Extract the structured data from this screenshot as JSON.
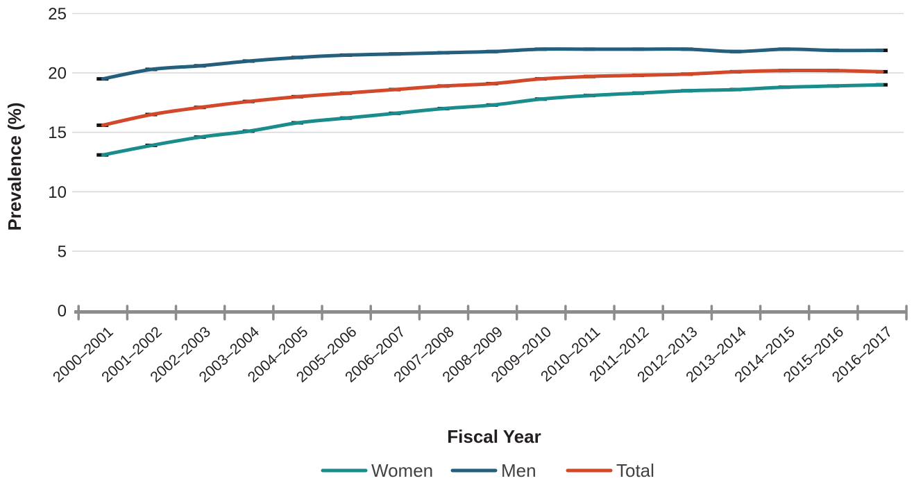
{
  "chart_data": {
    "type": "line",
    "title": "",
    "xlabel": "Fiscal Year",
    "ylabel": "Prevalence (%)",
    "x_categories": [
      "2000–2001",
      "2001–2002",
      "2002–2003",
      "2003–2004",
      "2004–2005",
      "2005–2006",
      "2006–2007",
      "2007–2008",
      "2008–2009",
      "2009–2010",
      "2010–2011",
      "2011–2012",
      "2012–2013",
      "2013–2014",
      "2014–2015",
      "2015–2016",
      "2016–2017"
    ],
    "y_ticks": [
      0,
      5,
      10,
      15,
      20,
      25
    ],
    "ylim": [
      0,
      25
    ],
    "grid": "horizontal-only",
    "legend_position": "bottom-center",
    "point_marker": "small black dash at each data point",
    "series": [
      {
        "name": "Women",
        "color": "#1a8c8c",
        "values": [
          13.1,
          13.9,
          14.6,
          15.1,
          15.8,
          16.2,
          16.6,
          17.0,
          17.3,
          17.8,
          18.1,
          18.3,
          18.5,
          18.6,
          18.8,
          18.9,
          19.0
        ]
      },
      {
        "name": "Men",
        "color": "#255f7e",
        "values": [
          19.5,
          20.3,
          20.6,
          21.0,
          21.3,
          21.5,
          21.6,
          21.7,
          21.8,
          22.0,
          22.0,
          22.0,
          22.0,
          21.8,
          22.0,
          21.9,
          21.9
        ]
      },
      {
        "name": "Total",
        "color": "#d1482a",
        "values": [
          15.6,
          16.5,
          17.1,
          17.6,
          18.0,
          18.3,
          18.6,
          18.9,
          19.1,
          19.5,
          19.7,
          19.8,
          19.9,
          20.1,
          20.2,
          20.2,
          20.1
        ]
      }
    ],
    "legend_order": [
      "Women",
      "Men",
      "Total"
    ]
  },
  "colors": {
    "background": "#ffffff",
    "gridline": "#d9d9d9",
    "axis_line": "#8c8c8c",
    "tick_text": "#231f20",
    "marker": "#111111",
    "legend_text": "#414042"
  }
}
